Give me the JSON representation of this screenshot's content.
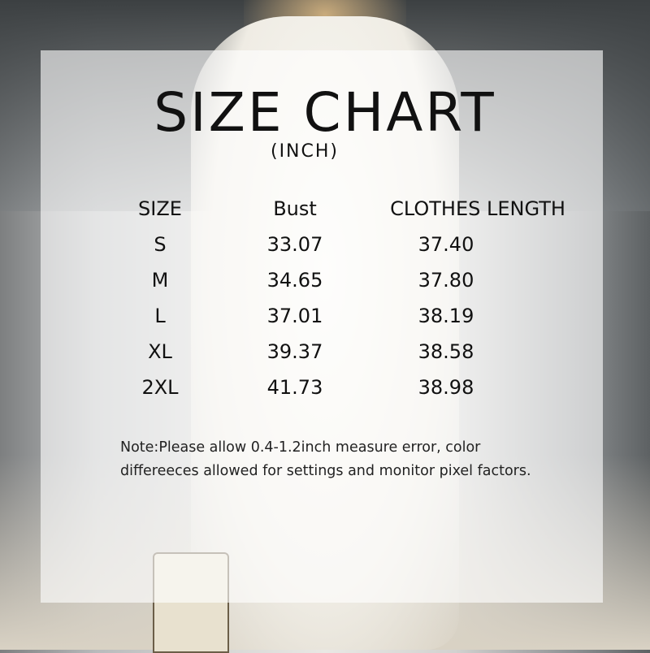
{
  "title": "SIZE CHART",
  "unit": "(INCH)",
  "table": {
    "headers": [
      "SIZE",
      "Bust",
      "CLOTHES LENGTH"
    ],
    "rows": [
      [
        "S",
        "33.07",
        "37.40"
      ],
      [
        "M",
        "34.65",
        "37.80"
      ],
      [
        "L",
        "37.01",
        "38.19"
      ],
      [
        "XL",
        "39.37",
        "38.58"
      ],
      [
        "2XL",
        "41.73",
        "38.98"
      ]
    ]
  },
  "note": {
    "line1": "Note:Please allow 0.4-1.2inch measure error, color",
    "line2": "differeeces allowed for settings and monitor pixel factors."
  }
}
